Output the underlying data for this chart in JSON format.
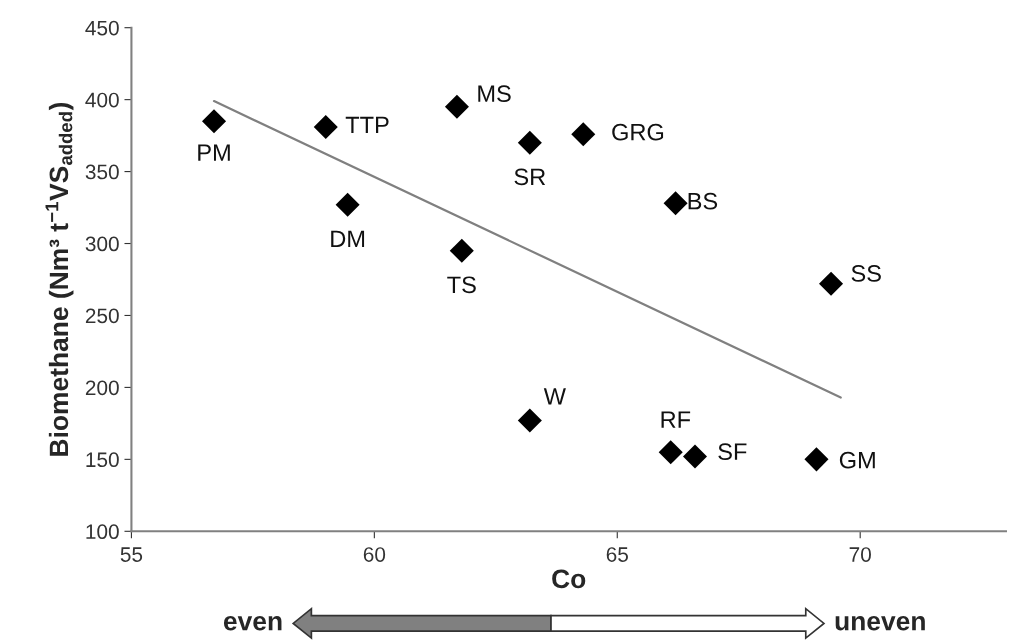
{
  "chart_data": {
    "type": "scatter",
    "xlabel": "Co",
    "ylabel": "Biomethane (Nm³ t$^{−1}$VS$_{added}$)",
    "xlim": [
      55,
      73
    ],
    "xticks": [
      55,
      60,
      65,
      70
    ],
    "ylim": [
      100,
      450
    ],
    "yticks": [
      100,
      150,
      200,
      250,
      300,
      350,
      400,
      450
    ],
    "grid": false,
    "series": [
      {
        "marker": "diamond",
        "color": "#000000",
        "x": [
          56.7,
          59.0,
          61.7,
          59.45,
          61.8,
          63.2,
          64.3,
          66.2,
          69.4,
          63.2,
          66.1,
          66.6,
          69.1
        ],
        "values": [
          385,
          381,
          395,
          327,
          295,
          370,
          376,
          328,
          272,
          177,
          155,
          152,
          150
        ]
      },
      {
        "type": "line",
        "color": "#808080",
        "x": [
          56.7,
          69.6
        ],
        "values": [
          399,
          193
        ]
      }
    ],
    "annotations": [
      {
        "text": "PM",
        "x": 56.7,
        "y": 385
      },
      {
        "text": "TTP",
        "x": 59.0,
        "y": 381
      },
      {
        "text": "MS",
        "x": 61.7,
        "y": 395
      },
      {
        "text": "DM",
        "x": 59.45,
        "y": 327
      },
      {
        "text": "TS",
        "x": 61.8,
        "y": 295
      },
      {
        "text": "SR",
        "x": 63.2,
        "y": 370
      },
      {
        "text": "GRG",
        "x": 64.3,
        "y": 376
      },
      {
        "text": "BS",
        "x": 66.2,
        "y": 328
      },
      {
        "text": "SS",
        "x": 69.4,
        "y": 272
      },
      {
        "text": "W",
        "x": 63.2,
        "y": 177
      },
      {
        "text": "RF",
        "x": 66.1,
        "y": 155
      },
      {
        "text": "SF",
        "x": 66.6,
        "y": 152
      },
      {
        "text": "GM",
        "x": 69.1,
        "y": 150
      },
      "even",
      "uneven"
    ]
  }
}
